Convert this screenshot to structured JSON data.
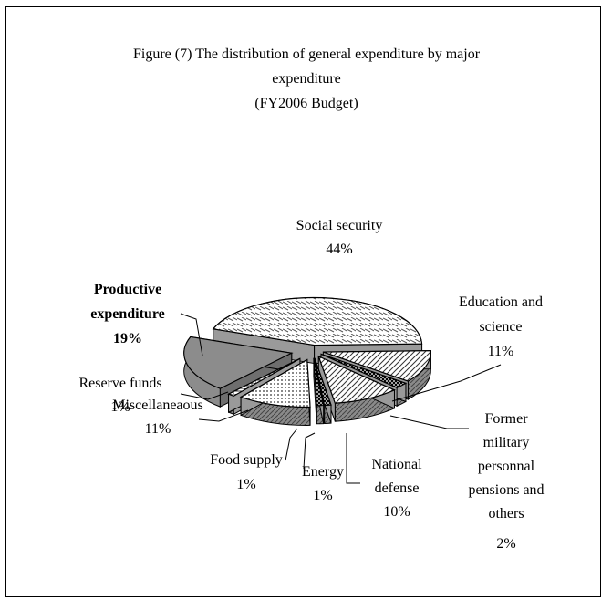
{
  "chart_data": {
    "type": "pie",
    "title": "Figure (7) The distribution of general expenditure by major expenditure",
    "subtitle": "(FY2006 Budget)",
    "slices": [
      {
        "label": "Social security",
        "value": 44,
        "value_label": "44%",
        "emphasis": false
      },
      {
        "label": "Education and science",
        "value": 11,
        "value_label": "11%",
        "emphasis": false
      },
      {
        "label": "Former military personnal pensions and others",
        "value": 2,
        "value_label": "2%",
        "emphasis": false
      },
      {
        "label": "National defense",
        "value": 10,
        "value_label": "10%",
        "emphasis": false
      },
      {
        "label": "Energy",
        "value": 1,
        "value_label": "1%",
        "emphasis": false
      },
      {
        "label": "Food supply",
        "value": 1,
        "value_label": "1%",
        "emphasis": false
      },
      {
        "label": "Miscellaneaous",
        "value": 11,
        "value_label": "11%",
        "emphasis": false
      },
      {
        "label": "Reserve funds",
        "value": 1,
        "value_label": "1%",
        "emphasis": false
      },
      {
        "label": "Productive expenditure",
        "value": 19,
        "value_label": "19%",
        "emphasis": true
      }
    ],
    "colors": {
      "top_fill": "#ffffff",
      "pattern_ink": "#333333",
      "side_fill": "#7a7a7a",
      "productive_fill": "#8c8c8c",
      "edge": "#000000"
    }
  }
}
